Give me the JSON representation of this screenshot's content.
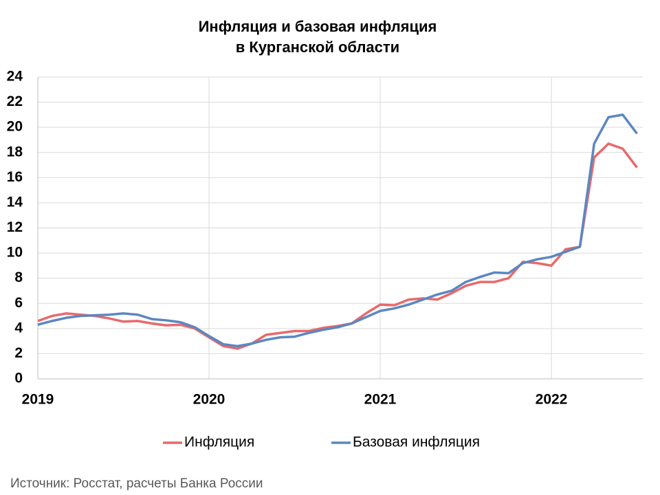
{
  "chart_data": {
    "type": "line",
    "title": [
      "Инфляция и базовая инфляция",
      "в  Курганской области"
    ],
    "categories": [
      "2019",
      null,
      null,
      null,
      null,
      null,
      null,
      null,
      null,
      null,
      null,
      null,
      "2020",
      null,
      null,
      null,
      null,
      null,
      null,
      null,
      null,
      null,
      null,
      null,
      "2021",
      null,
      null,
      null,
      null,
      null,
      null,
      null,
      null,
      null,
      null,
      null,
      "2022",
      null,
      null,
      null,
      null,
      null,
      null
    ],
    "series": [
      {
        "name": "Инфляция",
        "color": "#e8696b",
        "values": [
          4.6,
          5.0,
          5.2,
          5.1,
          5.0,
          4.8,
          4.55,
          4.6,
          4.4,
          4.25,
          4.3,
          4.0,
          3.3,
          2.6,
          2.4,
          2.8,
          3.5,
          3.65,
          3.8,
          3.8,
          4.05,
          4.2,
          4.4,
          5.2,
          5.9,
          5.85,
          6.3,
          6.4,
          6.3,
          6.8,
          7.4,
          7.7,
          7.7,
          8.0,
          9.3,
          9.2,
          9.0,
          10.3,
          10.5,
          17.6,
          18.7,
          18.3,
          16.8
        ]
      },
      {
        "name": "Базовая инфляция",
        "color": "#5b87c0",
        "values": [
          4.3,
          4.6,
          4.85,
          5.0,
          5.05,
          5.1,
          5.2,
          5.1,
          4.75,
          4.65,
          4.5,
          4.1,
          3.4,
          2.75,
          2.6,
          2.8,
          3.1,
          3.3,
          3.35,
          3.65,
          3.9,
          4.1,
          4.4,
          4.9,
          5.4,
          5.6,
          5.9,
          6.3,
          6.7,
          7.0,
          7.7,
          8.1,
          8.45,
          8.4,
          9.2,
          9.5,
          9.7,
          10.1,
          10.5,
          18.7,
          20.8,
          21.0,
          19.5
        ]
      }
    ],
    "ylim": [
      0,
      24
    ],
    "yticks": [
      0,
      2,
      4,
      6,
      8,
      10,
      12,
      14,
      16,
      18,
      20,
      22,
      24
    ],
    "grid": true,
    "legend": "bottom",
    "source": "Источник: Росстат, расчеты Банка России"
  }
}
